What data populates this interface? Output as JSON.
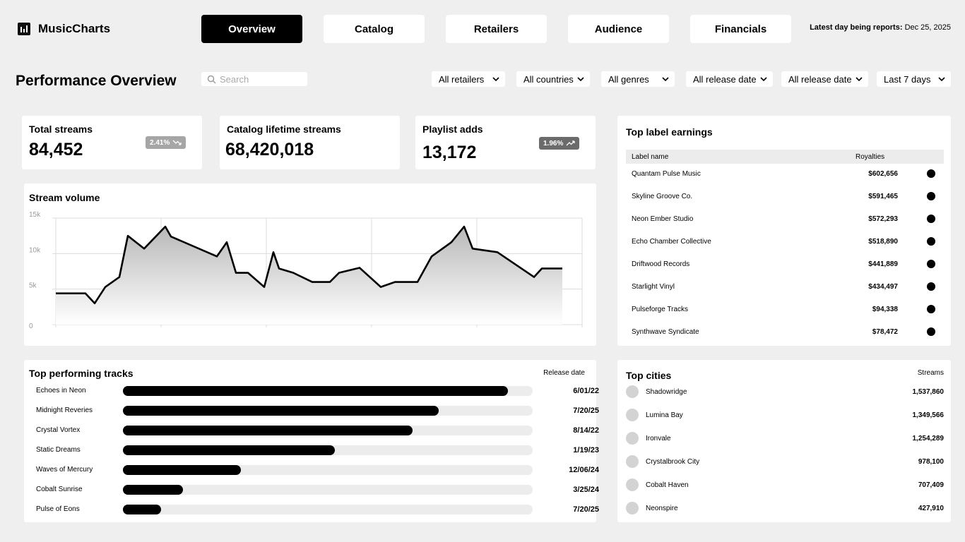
{
  "app": {
    "name": "MusicCharts"
  },
  "nav": {
    "tabs": [
      {
        "label": "Overview",
        "active": true
      },
      {
        "label": "Catalog"
      },
      {
        "label": "Retailers"
      },
      {
        "label": "Audience"
      },
      {
        "label": "Financials"
      }
    ]
  },
  "latest_report": {
    "label": "Latest day being reports:",
    "date": "Dec 25, 2025"
  },
  "page": {
    "title": "Performance Overview"
  },
  "search": {
    "placeholder": "Search"
  },
  "filters": [
    "All retailers",
    "All countries",
    "All genres",
    "All release date",
    "All release date",
    "Last 7 days"
  ],
  "kpis": {
    "total_streams": {
      "label": "Total streams",
      "value": "84,452",
      "badge": "2.41%",
      "trend": "down"
    },
    "catalog_lifetime": {
      "label": "Catalog lifetime streams",
      "value": "68,420,018"
    },
    "playlist_adds": {
      "label": "Playlist adds",
      "value": "13,172",
      "badge": "1.96%",
      "trend": "up"
    }
  },
  "stream_volume": {
    "title": "Stream volume",
    "y_ticks": [
      "15k",
      "10k",
      "5k",
      "0"
    ]
  },
  "chart_data": {
    "type": "area",
    "title": "Stream volume",
    "xlabel": "",
    "ylabel": "",
    "ylim": [
      0,
      15000
    ],
    "y_ticks": [
      0,
      5000,
      10000,
      15000
    ],
    "grid": true,
    "series": [
      {
        "values": [
          4400,
          4400,
          4400,
          3000,
          5300,
          6700,
          12500,
          10700,
          13800,
          12400,
          9600,
          11600,
          7300,
          7300,
          5300,
          10200,
          7900,
          7300,
          6000,
          6000,
          7300,
          8000,
          5300,
          6000,
          6000,
          9600,
          11600,
          13800,
          10700,
          10200,
          6700,
          7900,
          7900,
          7900
        ],
        "x": [
          0,
          20,
          42,
          55,
          70,
          90,
          102,
          125,
          155,
          163,
          228,
          242,
          255,
          272,
          295,
          308,
          316,
          336,
          363,
          388,
          401,
          430,
          460,
          480,
          512,
          532,
          560,
          578,
          590,
          625,
          677,
          688,
          705,
          717
        ]
      }
    ]
  },
  "top_label_earnings": {
    "title": "Top label earnings",
    "columns": [
      "Label name",
      "Royalties"
    ],
    "rows": [
      {
        "name": "Quantam Pulse Music",
        "value": "$602,656"
      },
      {
        "name": "Skyline Groove Co.",
        "value": "$591,465"
      },
      {
        "name": "Neon Ember Studio",
        "value": "$572,293"
      },
      {
        "name": "Echo Chamber Collective",
        "value": "$518,890"
      },
      {
        "name": "Driftwood Records",
        "value": "$441,889"
      },
      {
        "name": "Starlight Vinyl",
        "value": "$434,497"
      },
      {
        "name": "Pulseforge Tracks",
        "value": "$94,338"
      },
      {
        "name": "Synthwave Syndicate",
        "value": "$78,472"
      }
    ]
  },
  "top_tracks": {
    "title": "Top performing tracks",
    "date_header": "Release date",
    "rows": [
      {
        "name": "Echoes in Neon",
        "share": 0.94,
        "date": "6/01/22"
      },
      {
        "name": "Midnight Reveries",
        "share": 0.77,
        "date": "7/20/25"
      },
      {
        "name": "Crystal Vortex",
        "share": 0.707,
        "date": "8/14/22"
      },
      {
        "name": "Static Dreams",
        "share": 0.517,
        "date": "1/19/23"
      },
      {
        "name": "Waves of Mercury",
        "share": 0.288,
        "date": "12/06/24"
      },
      {
        "name": "Cobalt Sunrise",
        "share": 0.147,
        "date": "3/25/24"
      },
      {
        "name": "Pulse of Eons",
        "share": 0.093,
        "date": "7/20/25"
      }
    ]
  },
  "top_cities": {
    "title": "Top cities",
    "value_header": "Streams",
    "rows": [
      {
        "name": "Shadowridge",
        "value": "1,537,860"
      },
      {
        "name": "Lumina Bay",
        "value": "1,349,566"
      },
      {
        "name": "Ironvale",
        "value": "1,254,289"
      },
      {
        "name": "Crystalbrook City",
        "value": "978,100"
      },
      {
        "name": "Cobalt Haven",
        "value": "707,409"
      },
      {
        "name": "Neonspire",
        "value": "427,910"
      }
    ]
  }
}
